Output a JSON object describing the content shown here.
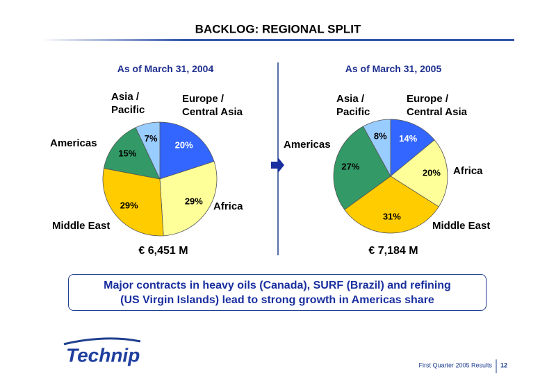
{
  "title": "BACKLOG: REGIONAL SPLIT",
  "chart_data": [
    {
      "type": "pie",
      "title": "As of March 31, 2004",
      "categories": [
        "Europe / Central Asia",
        "Africa",
        "Middle East",
        "Americas",
        "Asia / Pacific"
      ],
      "values": [
        20,
        29,
        29,
        15,
        7
      ],
      "value_labels": [
        "20%",
        "29%",
        "29%",
        "15%",
        "7%"
      ],
      "colors": [
        "#3366ff",
        "#ffff99",
        "#ffcc00",
        "#339966",
        "#99ccff"
      ],
      "caption": "€ 6,451 M"
    },
    {
      "type": "pie",
      "title": "As of March 31, 2005",
      "categories": [
        "Europe / Central Asia",
        "Africa",
        "Middle East",
        "Americas",
        "Asia / Pacific"
      ],
      "values": [
        14,
        20,
        31,
        27,
        8
      ],
      "value_labels": [
        "14%",
        "20%",
        "31%",
        "27%",
        "8%"
      ],
      "colors": [
        "#3366ff",
        "#ffff99",
        "#ffcc00",
        "#339966",
        "#99ccff"
      ],
      "caption": "€ 7,184 M"
    }
  ],
  "callout": [
    "Major contracts in heavy oils (Canada), SURF (Brazil) and refining",
    "(US Virgin Islands) lead to strong growth in Americas share"
  ],
  "logo": "Technip",
  "footer": "First Quarter 2005 Results",
  "page": "12"
}
